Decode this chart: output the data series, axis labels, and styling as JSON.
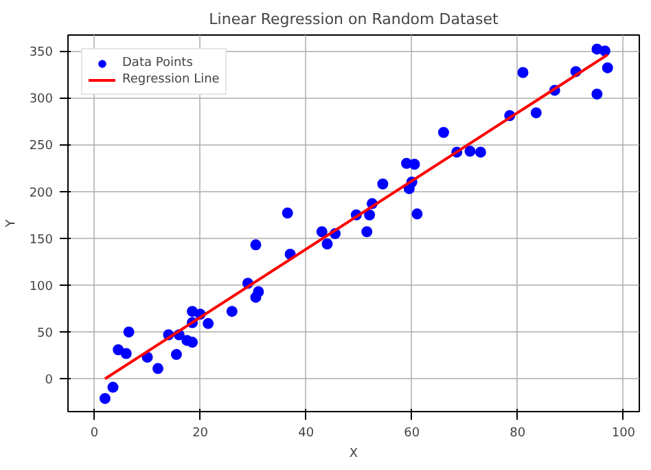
{
  "chart_data": {
    "type": "scatter",
    "title": "Linear Regression on Random Dataset",
    "xlabel": "X",
    "ylabel": "Y",
    "xlim": [
      -5,
      103
    ],
    "ylim": [
      -35,
      367
    ],
    "xticks": [
      0,
      20,
      40,
      60,
      80,
      100
    ],
    "yticks": [
      0,
      50,
      100,
      150,
      200,
      250,
      300,
      350
    ],
    "grid": true,
    "legend": "top left",
    "series": [
      {
        "name": "Data Points",
        "color": "#0000ff",
        "marker": "circle",
        "x": [
          2,
          3.5,
          4.5,
          6,
          6.5,
          10,
          12,
          14,
          15.5,
          16,
          17.5,
          18.5,
          18.5,
          18.5,
          20,
          21.5,
          26,
          29,
          30.5,
          30.5,
          31,
          36.5,
          37,
          43,
          44,
          45.5,
          49.5,
          51.5,
          52,
          52.5,
          54.5,
          59,
          59.5,
          60,
          60.5,
          61,
          66,
          68.5,
          71,
          73,
          78.5,
          81,
          83.5,
          87,
          91,
          95,
          95,
          96.5,
          97
        ],
        "values": [
          -21,
          -9,
          31,
          27,
          50,
          23,
          11,
          47,
          26,
          47,
          41,
          72,
          60,
          39,
          69,
          59,
          72,
          102,
          87,
          143,
          93,
          177,
          133,
          157,
          144,
          155,
          175,
          157,
          175,
          187,
          208,
          230,
          203,
          210,
          229,
          176,
          263,
          242,
          243,
          242,
          281,
          327,
          284,
          308,
          328,
          352,
          304,
          350,
          332
        ]
      },
      {
        "name": "Regression Line",
        "color": "#ff0000",
        "type": "line",
        "x": [
          2,
          97
        ],
        "values": [
          0,
          346
        ]
      }
    ]
  }
}
